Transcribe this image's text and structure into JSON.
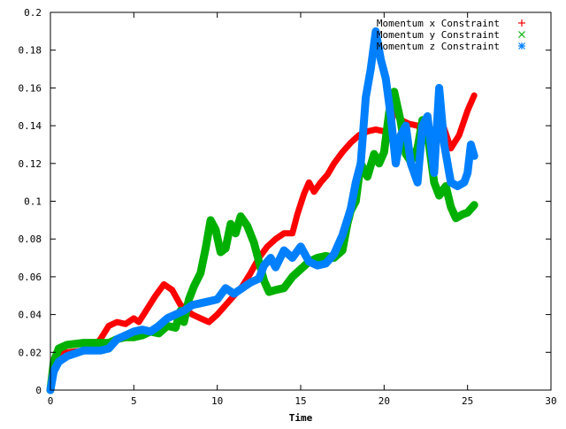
{
  "chart_data": {
    "type": "scatter",
    "title": "",
    "xlabel": "Time",
    "ylabel": "",
    "xlim": [
      0,
      30
    ],
    "ylim": [
      0,
      0.2
    ],
    "x_ticks": [
      0,
      5,
      10,
      15,
      20,
      25,
      30
    ],
    "x_tick_labels": [
      "0",
      "5",
      "10",
      "15",
      "20",
      "25",
      "30"
    ],
    "y_ticks": [
      0,
      0.02,
      0.04,
      0.06,
      0.08,
      0.1,
      0.12,
      0.14,
      0.16,
      0.18,
      0.2
    ],
    "y_tick_labels": [
      "0",
      "0.02",
      "0.04",
      "0.06",
      "0.08",
      "0.1",
      "0.12",
      "0.14",
      "0.16",
      "0.18",
      "0.2"
    ],
    "grid": false,
    "legend_position": "top-right",
    "series": [
      {
        "name": "Momentum x Constraint",
        "marker": "plus",
        "color": "#ff0000",
        "points": [
          [
            0,
            0.0
          ],
          [
            0.2,
            0.012
          ],
          [
            0.5,
            0.018
          ],
          [
            1,
            0.02
          ],
          [
            2,
            0.021
          ],
          [
            2.5,
            0.022
          ],
          [
            3,
            0.027
          ],
          [
            3.5,
            0.034
          ],
          [
            4,
            0.036
          ],
          [
            4.5,
            0.035
          ],
          [
            5,
            0.038
          ],
          [
            5.3,
            0.036
          ],
          [
            5.8,
            0.043
          ],
          [
            6.3,
            0.05
          ],
          [
            6.8,
            0.056
          ],
          [
            7.3,
            0.053
          ],
          [
            7.8,
            0.045
          ],
          [
            8.5,
            0.04
          ],
          [
            9,
            0.038
          ],
          [
            9.5,
            0.036
          ],
          [
            10,
            0.04
          ],
          [
            10.5,
            0.045
          ],
          [
            11,
            0.05
          ],
          [
            11.5,
            0.055
          ],
          [
            12,
            0.062
          ],
          [
            12.5,
            0.07
          ],
          [
            13,
            0.076
          ],
          [
            13.5,
            0.08
          ],
          [
            14,
            0.083
          ],
          [
            14.5,
            0.083
          ],
          [
            14.8,
            0.093
          ],
          [
            15.2,
            0.104
          ],
          [
            15.5,
            0.11
          ],
          [
            15.8,
            0.105
          ],
          [
            16.2,
            0.11
          ],
          [
            16.6,
            0.114
          ],
          [
            17,
            0.12
          ],
          [
            17.5,
            0.126
          ],
          [
            18,
            0.131
          ],
          [
            18.5,
            0.135
          ],
          [
            19,
            0.137
          ],
          [
            19.5,
            0.138
          ],
          [
            20,
            0.137
          ],
          [
            20.3,
            0.133
          ],
          [
            20.6,
            0.15
          ],
          [
            21,
            0.143
          ],
          [
            21.5,
            0.141
          ],
          [
            22,
            0.14
          ],
          [
            22.5,
            0.136
          ],
          [
            23,
            0.138
          ],
          [
            23.5,
            0.141
          ],
          [
            24,
            0.128
          ],
          [
            24.5,
            0.135
          ],
          [
            25,
            0.148
          ],
          [
            25.4,
            0.156
          ]
        ]
      },
      {
        "name": "Momentum y Constraint",
        "marker": "cross",
        "color": "#00b000",
        "points": [
          [
            0,
            0.0
          ],
          [
            0.2,
            0.015
          ],
          [
            0.5,
            0.022
          ],
          [
            1,
            0.024
          ],
          [
            2,
            0.025
          ],
          [
            3,
            0.025
          ],
          [
            3.5,
            0.025
          ],
          [
            4,
            0.027
          ],
          [
            4.5,
            0.028
          ],
          [
            5,
            0.028
          ],
          [
            5.5,
            0.029
          ],
          [
            6,
            0.031
          ],
          [
            6.5,
            0.03
          ],
          [
            7,
            0.034
          ],
          [
            7.5,
            0.033
          ],
          [
            7.8,
            0.042
          ],
          [
            8,
            0.036
          ],
          [
            8.3,
            0.048
          ],
          [
            8.6,
            0.055
          ],
          [
            9,
            0.062
          ],
          [
            9.3,
            0.075
          ],
          [
            9.6,
            0.09
          ],
          [
            9.9,
            0.085
          ],
          [
            10.2,
            0.073
          ],
          [
            10.5,
            0.075
          ],
          [
            10.8,
            0.088
          ],
          [
            11.1,
            0.083
          ],
          [
            11.4,
            0.092
          ],
          [
            11.8,
            0.087
          ],
          [
            12.2,
            0.078
          ],
          [
            12.5,
            0.068
          ],
          [
            12.8,
            0.058
          ],
          [
            13.1,
            0.052
          ],
          [
            13.5,
            0.053
          ],
          [
            14,
            0.054
          ],
          [
            14.5,
            0.06
          ],
          [
            15,
            0.064
          ],
          [
            15.5,
            0.068
          ],
          [
            16,
            0.07
          ],
          [
            16.5,
            0.071
          ],
          [
            17,
            0.07
          ],
          [
            17.5,
            0.074
          ],
          [
            17.8,
            0.088
          ],
          [
            18,
            0.095
          ],
          [
            18.3,
            0.1
          ],
          [
            18.6,
            0.12
          ],
          [
            19,
            0.113
          ],
          [
            19.4,
            0.125
          ],
          [
            19.7,
            0.12
          ],
          [
            20,
            0.126
          ],
          [
            20.3,
            0.147
          ],
          [
            20.6,
            0.158
          ],
          [
            21,
            0.142
          ],
          [
            21.3,
            0.125
          ],
          [
            21.6,
            0.121
          ],
          [
            22,
            0.128
          ],
          [
            22.3,
            0.143
          ],
          [
            22.6,
            0.136
          ],
          [
            23,
            0.11
          ],
          [
            23.3,
            0.103
          ],
          [
            23.7,
            0.108
          ],
          [
            24,
            0.097
          ],
          [
            24.3,
            0.091
          ],
          [
            24.7,
            0.093
          ],
          [
            25,
            0.094
          ],
          [
            25.4,
            0.098
          ]
        ]
      },
      {
        "name": "Momentum z Constraint",
        "marker": "star",
        "color": "#0080ff",
        "points": [
          [
            0,
            0.0
          ],
          [
            0.2,
            0.01
          ],
          [
            0.5,
            0.015
          ],
          [
            1,
            0.018
          ],
          [
            2,
            0.021
          ],
          [
            3,
            0.021
          ],
          [
            3.5,
            0.022
          ],
          [
            4,
            0.027
          ],
          [
            4.5,
            0.029
          ],
          [
            5,
            0.031
          ],
          [
            5.5,
            0.032
          ],
          [
            6,
            0.031
          ],
          [
            6.5,
            0.034
          ],
          [
            7,
            0.038
          ],
          [
            7.5,
            0.04
          ],
          [
            8,
            0.042
          ],
          [
            8.5,
            0.045
          ],
          [
            9,
            0.046
          ],
          [
            9.5,
            0.047
          ],
          [
            10,
            0.048
          ],
          [
            10.5,
            0.054
          ],
          [
            11,
            0.051
          ],
          [
            11.5,
            0.054
          ],
          [
            12,
            0.057
          ],
          [
            12.5,
            0.059
          ],
          [
            12.8,
            0.066
          ],
          [
            13.2,
            0.07
          ],
          [
            13.5,
            0.065
          ],
          [
            14,
            0.074
          ],
          [
            14.5,
            0.07
          ],
          [
            15,
            0.076
          ],
          [
            15.5,
            0.068
          ],
          [
            16,
            0.066
          ],
          [
            16.5,
            0.067
          ],
          [
            17,
            0.072
          ],
          [
            17.5,
            0.082
          ],
          [
            18,
            0.096
          ],
          [
            18.3,
            0.11
          ],
          [
            18.6,
            0.12
          ],
          [
            18.9,
            0.155
          ],
          [
            19.2,
            0.17
          ],
          [
            19.5,
            0.19
          ],
          [
            19.8,
            0.175
          ],
          [
            20.1,
            0.165
          ],
          [
            20.4,
            0.145
          ],
          [
            20.7,
            0.12
          ],
          [
            21,
            0.135
          ],
          [
            21.3,
            0.14
          ],
          [
            21.6,
            0.12
          ],
          [
            22,
            0.11
          ],
          [
            22.3,
            0.14
          ],
          [
            22.6,
            0.145
          ],
          [
            23,
            0.115
          ],
          [
            23.3,
            0.16
          ],
          [
            23.6,
            0.13
          ],
          [
            24,
            0.11
          ],
          [
            24.4,
            0.108
          ],
          [
            24.8,
            0.11
          ],
          [
            25,
            0.115
          ],
          [
            25.2,
            0.13
          ],
          [
            25.4,
            0.124
          ]
        ]
      }
    ]
  }
}
